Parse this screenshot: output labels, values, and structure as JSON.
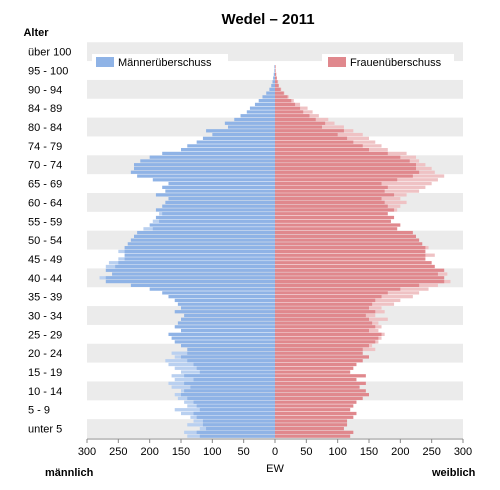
{
  "chart_data": {
    "type": "bar",
    "title": "Wedel – 2011",
    "y_axis_title": "Alter",
    "x_axis_title": "EW",
    "left_label": "männlich",
    "right_label": "weiblich",
    "xlim": [
      -300,
      300
    ],
    "x_ticks": [
      -300,
      -250,
      -200,
      -150,
      -100,
      -50,
      0,
      50,
      100,
      150,
      200,
      250,
      300
    ],
    "x_tick_labels": [
      "300",
      "250",
      "200",
      "150",
      "100",
      "50",
      "0",
      "50",
      "100",
      "150",
      "200",
      "250",
      "300"
    ],
    "age_groups": [
      "unter 5",
      "5 - 9",
      "10 - 14",
      "15 - 19",
      "20 - 24",
      "25 - 29",
      "30 - 34",
      "35 - 39",
      "40 - 44",
      "45 - 49",
      "50 - 54",
      "55 - 59",
      "60 - 64",
      "65 - 69",
      "70 - 74",
      "74 - 79",
      "80 - 84",
      "84 - 89",
      "90 - 94",
      "95 - 100",
      "über 100"
    ],
    "legend": {
      "male_surplus": "Männerüberschuss",
      "female_surplus": "Frauenüberschuss"
    },
    "colors": {
      "male": "#8fb3e6",
      "male_surplus": "#b9d0f0",
      "female": "#e0888d",
      "female_surplus": "#efc2c4",
      "band": "#ebebeb"
    },
    "single_year_ages": [
      0,
      1,
      2,
      3,
      4,
      5,
      6,
      7,
      8,
      9,
      10,
      11,
      12,
      13,
      14,
      15,
      16,
      17,
      18,
      19,
      20,
      21,
      22,
      23,
      24,
      25,
      26,
      27,
      28,
      29,
      30,
      31,
      32,
      33,
      34,
      35,
      36,
      37,
      38,
      39,
      40,
      41,
      42,
      43,
      44,
      45,
      46,
      47,
      48,
      49,
      50,
      51,
      52,
      53,
      54,
      55,
      56,
      57,
      58,
      59,
      60,
      61,
      62,
      63,
      64,
      65,
      66,
      67,
      68,
      69,
      70,
      71,
      72,
      73,
      74,
      75,
      76,
      77,
      78,
      79,
      80,
      81,
      82,
      83,
      84,
      85,
      86,
      87,
      88,
      89,
      90,
      91,
      92,
      93,
      94,
      95,
      96,
      97,
      98,
      99,
      100,
      101,
      102,
      103
    ],
    "male": [
      140,
      145,
      120,
      140,
      130,
      135,
      150,
      160,
      140,
      145,
      155,
      160,
      150,
      165,
      170,
      160,
      165,
      150,
      160,
      170,
      175,
      160,
      165,
      140,
      150,
      160,
      165,
      170,
      150,
      160,
      155,
      150,
      145,
      160,
      150,
      155,
      160,
      170,
      180,
      200,
      230,
      270,
      280,
      260,
      270,
      270,
      265,
      250,
      240,
      250,
      240,
      235,
      230,
      225,
      220,
      210,
      200,
      195,
      190,
      185,
      190,
      180,
      175,
      170,
      190,
      175,
      180,
      170,
      195,
      220,
      230,
      225,
      225,
      215,
      200,
      180,
      150,
      140,
      125,
      115,
      100,
      110,
      75,
      80,
      65,
      55,
      45,
      40,
      32,
      26,
      20,
      14,
      9,
      6,
      4,
      3,
      2,
      1,
      1,
      0,
      0,
      0,
      0,
      0
    ],
    "female": [
      120,
      125,
      110,
      115,
      115,
      125,
      130,
      120,
      125,
      130,
      140,
      150,
      145,
      135,
      145,
      130,
      145,
      120,
      125,
      130,
      140,
      150,
      140,
      160,
      155,
      165,
      170,
      175,
      165,
      170,
      165,
      180,
      160,
      175,
      170,
      190,
      200,
      220,
      230,
      245,
      260,
      280,
      270,
      275,
      270,
      255,
      250,
      240,
      255,
      240,
      245,
      235,
      230,
      225,
      220,
      195,
      200,
      185,
      190,
      180,
      195,
      200,
      210,
      200,
      210,
      230,
      240,
      250,
      260,
      270,
      255,
      250,
      240,
      230,
      225,
      210,
      180,
      170,
      160,
      150,
      140,
      125,
      110,
      95,
      85,
      70,
      60,
      52,
      40,
      30,
      22,
      15,
      10,
      6,
      5,
      3,
      2,
      1,
      1,
      0,
      0,
      0,
      0,
      0
    ]
  }
}
